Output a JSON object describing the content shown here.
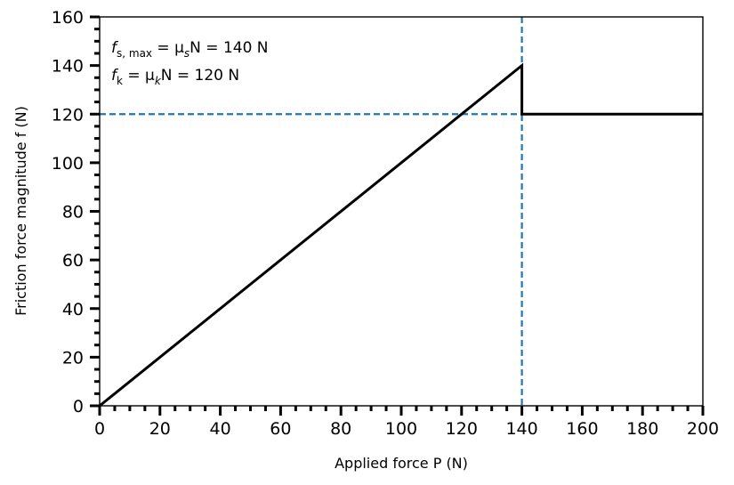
{
  "chart_data": {
    "type": "line",
    "title": "",
    "xlabel": "Applied force P (N)",
    "ylabel": "Friction force magnitude f (N)",
    "xlim": [
      0,
      200
    ],
    "ylim": [
      0,
      160
    ],
    "x_major_ticks": [
      0,
      20,
      40,
      60,
      80,
      100,
      120,
      140,
      160,
      180,
      200
    ],
    "y_major_ticks": [
      0,
      20,
      40,
      60,
      80,
      100,
      120,
      140,
      160
    ],
    "minor_tick_step": 5,
    "grid": false,
    "series": [
      {
        "name": "friction force",
        "style": "solid",
        "color": "#000000",
        "points": [
          [
            0,
            0
          ],
          [
            140,
            140
          ],
          [
            140,
            120
          ],
          [
            200,
            120
          ]
        ]
      }
    ],
    "reference_lines": [
      {
        "orientation": "horizontal",
        "value": 120,
        "style": "dashed",
        "color": "#1f77b4"
      },
      {
        "orientation": "vertical",
        "value": 140,
        "style": "dashed",
        "color": "#1f77b4"
      }
    ],
    "annotations": [
      {
        "name": "static",
        "prefix": "f",
        "sub": "s, max",
        "mid": " = μ",
        "midsub": "s",
        "suffix": "N = 140 N"
      },
      {
        "name": "kinetic",
        "prefix": "f",
        "sub": "k",
        "mid": " = μ",
        "midsub": "k",
        "suffix": "N = 120 N"
      }
    ]
  }
}
